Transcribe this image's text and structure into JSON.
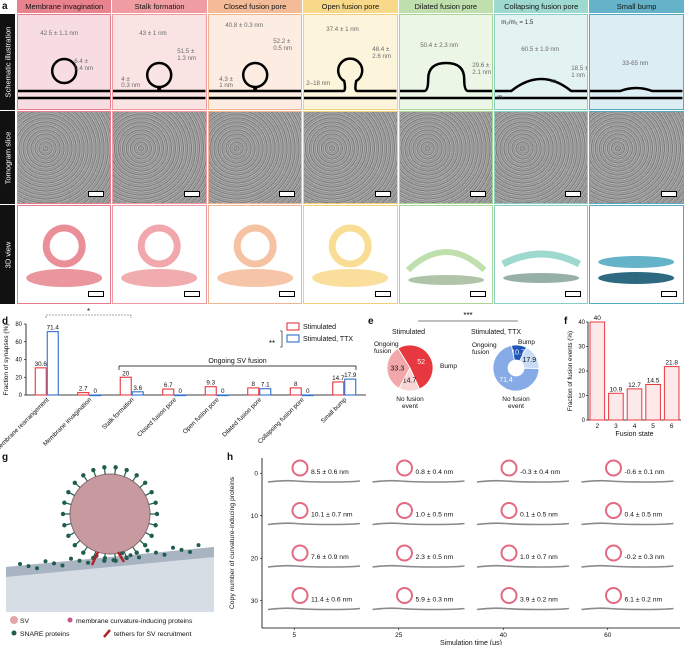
{
  "panel_letters": {
    "a": "a",
    "b": "b",
    "c": "c",
    "d": "d",
    "e": "e",
    "f": "f",
    "g": "g",
    "h": "h"
  },
  "stages": [
    {
      "label": "Membrane invagination",
      "header_color": "#e8838d",
      "bg": "#f7dde1",
      "border": "#e47d8d"
    },
    {
      "label": "Stalk formation",
      "header_color": "#ef9da2",
      "bg": "#fae3e3",
      "border": "#ee9aa0"
    },
    {
      "label": "Closed fusion pore",
      "header_color": "#f4bb98",
      "bg": "#fdece1",
      "border": "#f0b48f"
    },
    {
      "label": "Open fusion pore",
      "header_color": "#f8d98a",
      "bg": "#fdf4dc",
      "border": "#f0cf7c"
    },
    {
      "label": "Dilated fusion pore",
      "header_color": "#bfe0ad",
      "bg": "#ecf6e6",
      "border": "#a9d595"
    },
    {
      "label": "Collapsing fusion pore",
      "header_color": "#9ed9cf",
      "bg": "#e3f3f1",
      "border": "#86cfc2"
    },
    {
      "label": "Small bump",
      "header_color": "#64b3c8",
      "bg": "#dcedf3",
      "border": "#57a9c0"
    }
  ],
  "row_labels": {
    "a": "Schematic illustration",
    "b": "Tomogram slice",
    "c": "3D view"
  },
  "measurements": [
    [
      "42.5 ± 1.1 nm",
      "6.4 ±",
      "0.4 nm"
    ],
    [
      "43 ± 1 nm",
      "4 ±",
      "0.3 nm",
      "51.5 ±",
      "1.3 nm"
    ],
    [
      "40.8 ± 0.3 nm",
      "4.3 ±",
      "1 nm",
      "52.2 ±",
      "0.5 nm"
    ],
    [
      "37.4 ± 1 nm",
      "2–18 nm",
      "48.4 ±",
      "2.6 nm"
    ],
    [
      "50.4 ± 2.3 nm",
      "29.6 ±",
      "2.1 nm"
    ],
    [
      "60.5 ± 1.9 nm",
      "18.5 ±",
      "1 nm",
      "m₂/m₁ = 1.5",
      "m₁",
      "m₂"
    ],
    [
      "33-65 nm"
    ]
  ],
  "chart_d": {
    "type": "bar",
    "ylabel": "Fraction of synapses (%)",
    "categories": [
      "No membrane rearrangement",
      "Membrane invagination",
      "Stalk formation",
      "Closed fusion pore",
      "Open fusion pore",
      "Dilated fusion pore",
      "Collapsing fusion pore",
      "Small bump"
    ],
    "series": [
      {
        "name": "Stimulated",
        "color": "#e8383f",
        "values": [
          30.6,
          2.7,
          20,
          6.7,
          9.3,
          8,
          8,
          14.7
        ]
      },
      {
        "name": "Stimulated, TTX",
        "color": "#2f6fd0",
        "values": [
          71.4,
          0,
          3.6,
          0,
          0,
          7.1,
          0,
          17.9
        ]
      }
    ],
    "value_labels": [
      [
        "30.6",
        "71.4"
      ],
      [
        "2.7",
        "0"
      ],
      [
        "20",
        "3.6"
      ],
      [
        "6.7",
        "0"
      ],
      [
        "9.3",
        "0"
      ],
      [
        "8",
        "7.1"
      ],
      [
        "8",
        "0"
      ],
      [
        "14.7",
        "17.9"
      ]
    ],
    "ylim": [
      0,
      80
    ],
    "annotation": "Ongoing SV fusion",
    "sig_star": "*",
    "sig_double": "**"
  },
  "chart_e": {
    "type": "pie",
    "sig": "***",
    "pies": [
      {
        "title": "Stimulated",
        "slices": [
          {
            "label": "Ongoing fusion",
            "value": 52,
            "color": "#e8383f"
          },
          {
            "label": "Bump",
            "value": 14.7,
            "color": "#f9d6d6"
          },
          {
            "label": "No fusion event",
            "value": 33.3,
            "color": "#f2a8aa"
          }
        ]
      },
      {
        "title": "Stimulated, TTX",
        "slices": [
          {
            "label": "Ongoing fusion",
            "value": 10.7,
            "color": "#1f55b8"
          },
          {
            "label": "Bump",
            "value": 17.9,
            "color": "#c9dcf5"
          },
          {
            "label": "No fusion event",
            "value": 71.4,
            "color": "#86abe6"
          }
        ]
      }
    ],
    "value_labels": [
      [
        "52",
        "14.7",
        "33.3"
      ],
      [
        "10.7",
        "17.9",
        "71.4"
      ]
    ],
    "text_labels": [
      [
        "Ongoing fusion",
        "Bump",
        "No fusion event"
      ],
      [
        "Ongoing fusion",
        "Bump",
        "No fusion event"
      ]
    ]
  },
  "chart_f": {
    "type": "bar",
    "ylabel": "Fraction of fusion events (%)",
    "xlabel": "Fusion state",
    "categories": [
      "2",
      "3",
      "4",
      "5",
      "6"
    ],
    "values": [
      40,
      10.9,
      12.7,
      14.5,
      21.8
    ],
    "value_labels": [
      "40",
      "10.9",
      "12.7",
      "14.5",
      "21.8"
    ],
    "ylim": [
      0,
      40
    ],
    "yticks": [
      "0",
      "10",
      "20",
      "30",
      "40"
    ]
  },
  "panel_g": {
    "legend": [
      {
        "label": "SV",
        "color": "#e0a6aa"
      },
      {
        "label": "membrane curvature-inducing proteins",
        "color": "#c05a8c"
      },
      {
        "label": "SNARE proteins",
        "color": "#1f5e4e"
      },
      {
        "label": "tethers for SV recruitment",
        "color": "#b4212a"
      }
    ]
  },
  "panel_h": {
    "ylabel": "Copy number of curvature-inducing proteins",
    "xlabel": "Simulation time (μs)",
    "x_ticks": [
      "5",
      "25",
      "40",
      "60"
    ],
    "y_ticks": [
      "0",
      "10",
      "20",
      "30"
    ],
    "grid_labels": [
      [
        "8.5 ± 0.6 nm",
        "0.8 ± 0.4 nm",
        "-0.3 ± 0.4 nm",
        "-0.6 ± 0.1 nm"
      ],
      [
        "10.1 ± 0.7 nm",
        "1.0 ± 0.5 nm",
        "0.1 ± 0.5 nm",
        "0.4 ± 0.5 nm"
      ],
      [
        "7.6 ± 0.9 nm",
        "2.3 ± 0.5 nm",
        "1.0 ± 0.7 nm",
        "-0.2 ± 0.3 nm"
      ],
      [
        "11.4 ± 0.6 nm",
        "5.9 ± 0.3 nm",
        "3.9 ± 0.2 nm",
        "6.1 ± 0.2 nm"
      ]
    ]
  }
}
